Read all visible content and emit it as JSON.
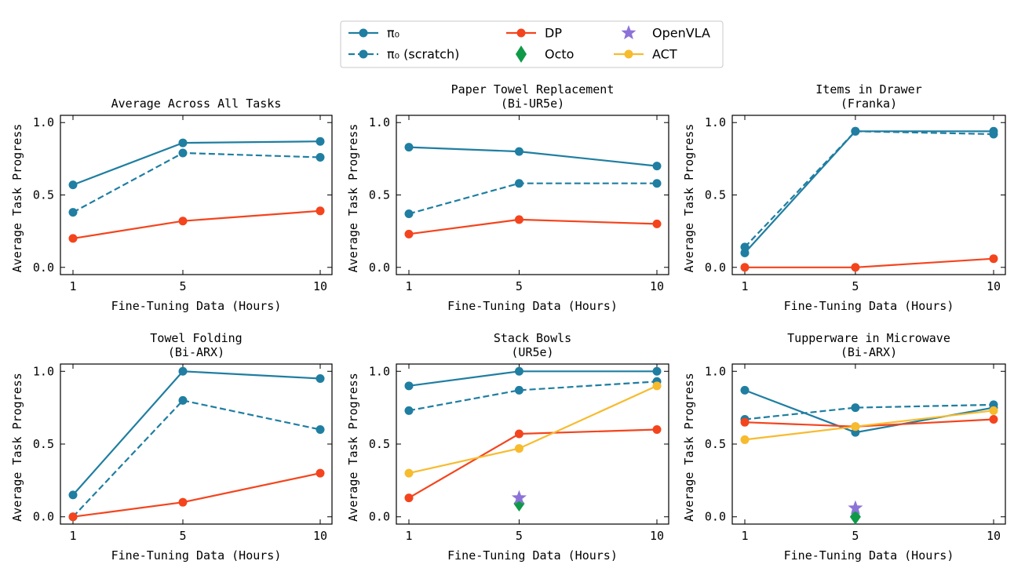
{
  "colors": {
    "pi0": "#1f7ea1",
    "dp": "#f4441d",
    "octo": "#0f9a48",
    "openvla": "#8c72d8",
    "act": "#f7bb2e"
  },
  "legend": [
    {
      "key": "pi0",
      "label": "π₀",
      "style": "solid-circle"
    },
    {
      "key": "pi0s",
      "label": "π₀ (scratch)",
      "style": "dashed-circle"
    },
    {
      "key": "dp",
      "label": "DP",
      "style": "solid-circle"
    },
    {
      "key": "octo",
      "label": "Octo",
      "style": "diamond"
    },
    {
      "key": "openvla",
      "label": "OpenVLA",
      "style": "star"
    },
    {
      "key": "act",
      "label": "ACT",
      "style": "solid-circle"
    }
  ],
  "chart_data": [
    {
      "type": "line",
      "title": [
        "Average Across All Tasks"
      ],
      "xlabel": "Fine-Tuning Data (Hours)",
      "ylabel": "Average Task Progress",
      "x_ticks": [
        "1",
        "5",
        "10"
      ],
      "y_ticks": [
        "0.0",
        "0.5",
        "1.0"
      ],
      "ylim": [
        -0.05,
        1.05
      ],
      "series": [
        {
          "key": "pi0",
          "values": [
            0.57,
            0.86,
            0.87
          ]
        },
        {
          "key": "pi0s",
          "values": [
            0.38,
            0.79,
            0.76
          ]
        },
        {
          "key": "dp",
          "values": [
            0.2,
            0.32,
            0.39
          ]
        }
      ],
      "points": []
    },
    {
      "type": "line",
      "title": [
        "Paper Towel Replacement",
        "(Bi-UR5e)"
      ],
      "xlabel": "Fine-Tuning Data (Hours)",
      "ylabel": "Average Task Progress",
      "x_ticks": [
        "1",
        "5",
        "10"
      ],
      "y_ticks": [
        "0.0",
        "0.5",
        "1.0"
      ],
      "ylim": [
        -0.05,
        1.05
      ],
      "series": [
        {
          "key": "pi0",
          "values": [
            0.83,
            0.8,
            0.7
          ]
        },
        {
          "key": "pi0s",
          "values": [
            0.37,
            0.58,
            0.58
          ]
        },
        {
          "key": "dp",
          "values": [
            0.23,
            0.33,
            0.3
          ]
        }
      ],
      "points": []
    },
    {
      "type": "line",
      "title": [
        "Items in Drawer",
        "(Franka)"
      ],
      "xlabel": "Fine-Tuning Data (Hours)",
      "ylabel": "Average Task Progress",
      "x_ticks": [
        "1",
        "5",
        "10"
      ],
      "y_ticks": [
        "0.0",
        "0.5",
        "1.0"
      ],
      "ylim": [
        -0.05,
        1.05
      ],
      "series": [
        {
          "key": "pi0",
          "values": [
            0.1,
            0.94,
            0.94
          ]
        },
        {
          "key": "pi0s",
          "values": [
            0.14,
            0.94,
            0.92
          ]
        },
        {
          "key": "dp",
          "values": [
            0.0,
            0.0,
            0.06
          ]
        }
      ],
      "points": []
    },
    {
      "type": "line",
      "title": [
        "Towel Folding",
        "(Bi-ARX)"
      ],
      "xlabel": "Fine-Tuning Data (Hours)",
      "ylabel": "Average Task Progress",
      "x_ticks": [
        "1",
        "5",
        "10"
      ],
      "y_ticks": [
        "0.0",
        "0.5",
        "1.0"
      ],
      "ylim": [
        -0.05,
        1.05
      ],
      "series": [
        {
          "key": "pi0",
          "values": [
            0.15,
            1.0,
            0.95
          ]
        },
        {
          "key": "pi0s",
          "values": [
            0.0,
            0.8,
            0.6
          ]
        },
        {
          "key": "dp",
          "values": [
            0.0,
            0.1,
            0.3
          ]
        }
      ],
      "points": []
    },
    {
      "type": "line",
      "title": [
        "Stack Bowls",
        "(UR5e)"
      ],
      "xlabel": "Fine-Tuning Data (Hours)",
      "ylabel": "Average Task Progress",
      "x_ticks": [
        "1",
        "5",
        "10"
      ],
      "y_ticks": [
        "0.0",
        "0.5",
        "1.0"
      ],
      "ylim": [
        -0.05,
        1.05
      ],
      "series": [
        {
          "key": "pi0",
          "values": [
            0.9,
            1.0,
            1.0
          ]
        },
        {
          "key": "pi0s",
          "values": [
            0.73,
            0.87,
            0.93
          ]
        },
        {
          "key": "dp",
          "values": [
            0.13,
            0.57,
            0.6
          ]
        },
        {
          "key": "act",
          "values": [
            0.3,
            0.47,
            0.9
          ]
        }
      ],
      "points": [
        {
          "key": "octo",
          "x": 5,
          "value": 0.09
        },
        {
          "key": "openvla",
          "x": 5,
          "value": 0.13
        }
      ]
    },
    {
      "type": "line",
      "title": [
        "Tupperware in Microwave",
        "(Bi-ARX)"
      ],
      "xlabel": "Fine-Tuning Data (Hours)",
      "ylabel": "Average Task Progress",
      "x_ticks": [
        "1",
        "5",
        "10"
      ],
      "y_ticks": [
        "0.0",
        "0.5",
        "1.0"
      ],
      "ylim": [
        -0.05,
        1.05
      ],
      "series": [
        {
          "key": "pi0",
          "values": [
            0.87,
            0.58,
            0.75
          ]
        },
        {
          "key": "pi0s",
          "values": [
            0.67,
            0.75,
            0.77
          ]
        },
        {
          "key": "dp",
          "values": [
            0.65,
            0.62,
            0.67
          ]
        },
        {
          "key": "act",
          "values": [
            0.53,
            0.62,
            0.73
          ]
        }
      ],
      "points": [
        {
          "key": "octo",
          "x": 5,
          "value": 0.0
        },
        {
          "key": "openvla",
          "x": 5,
          "value": 0.06
        }
      ]
    }
  ]
}
